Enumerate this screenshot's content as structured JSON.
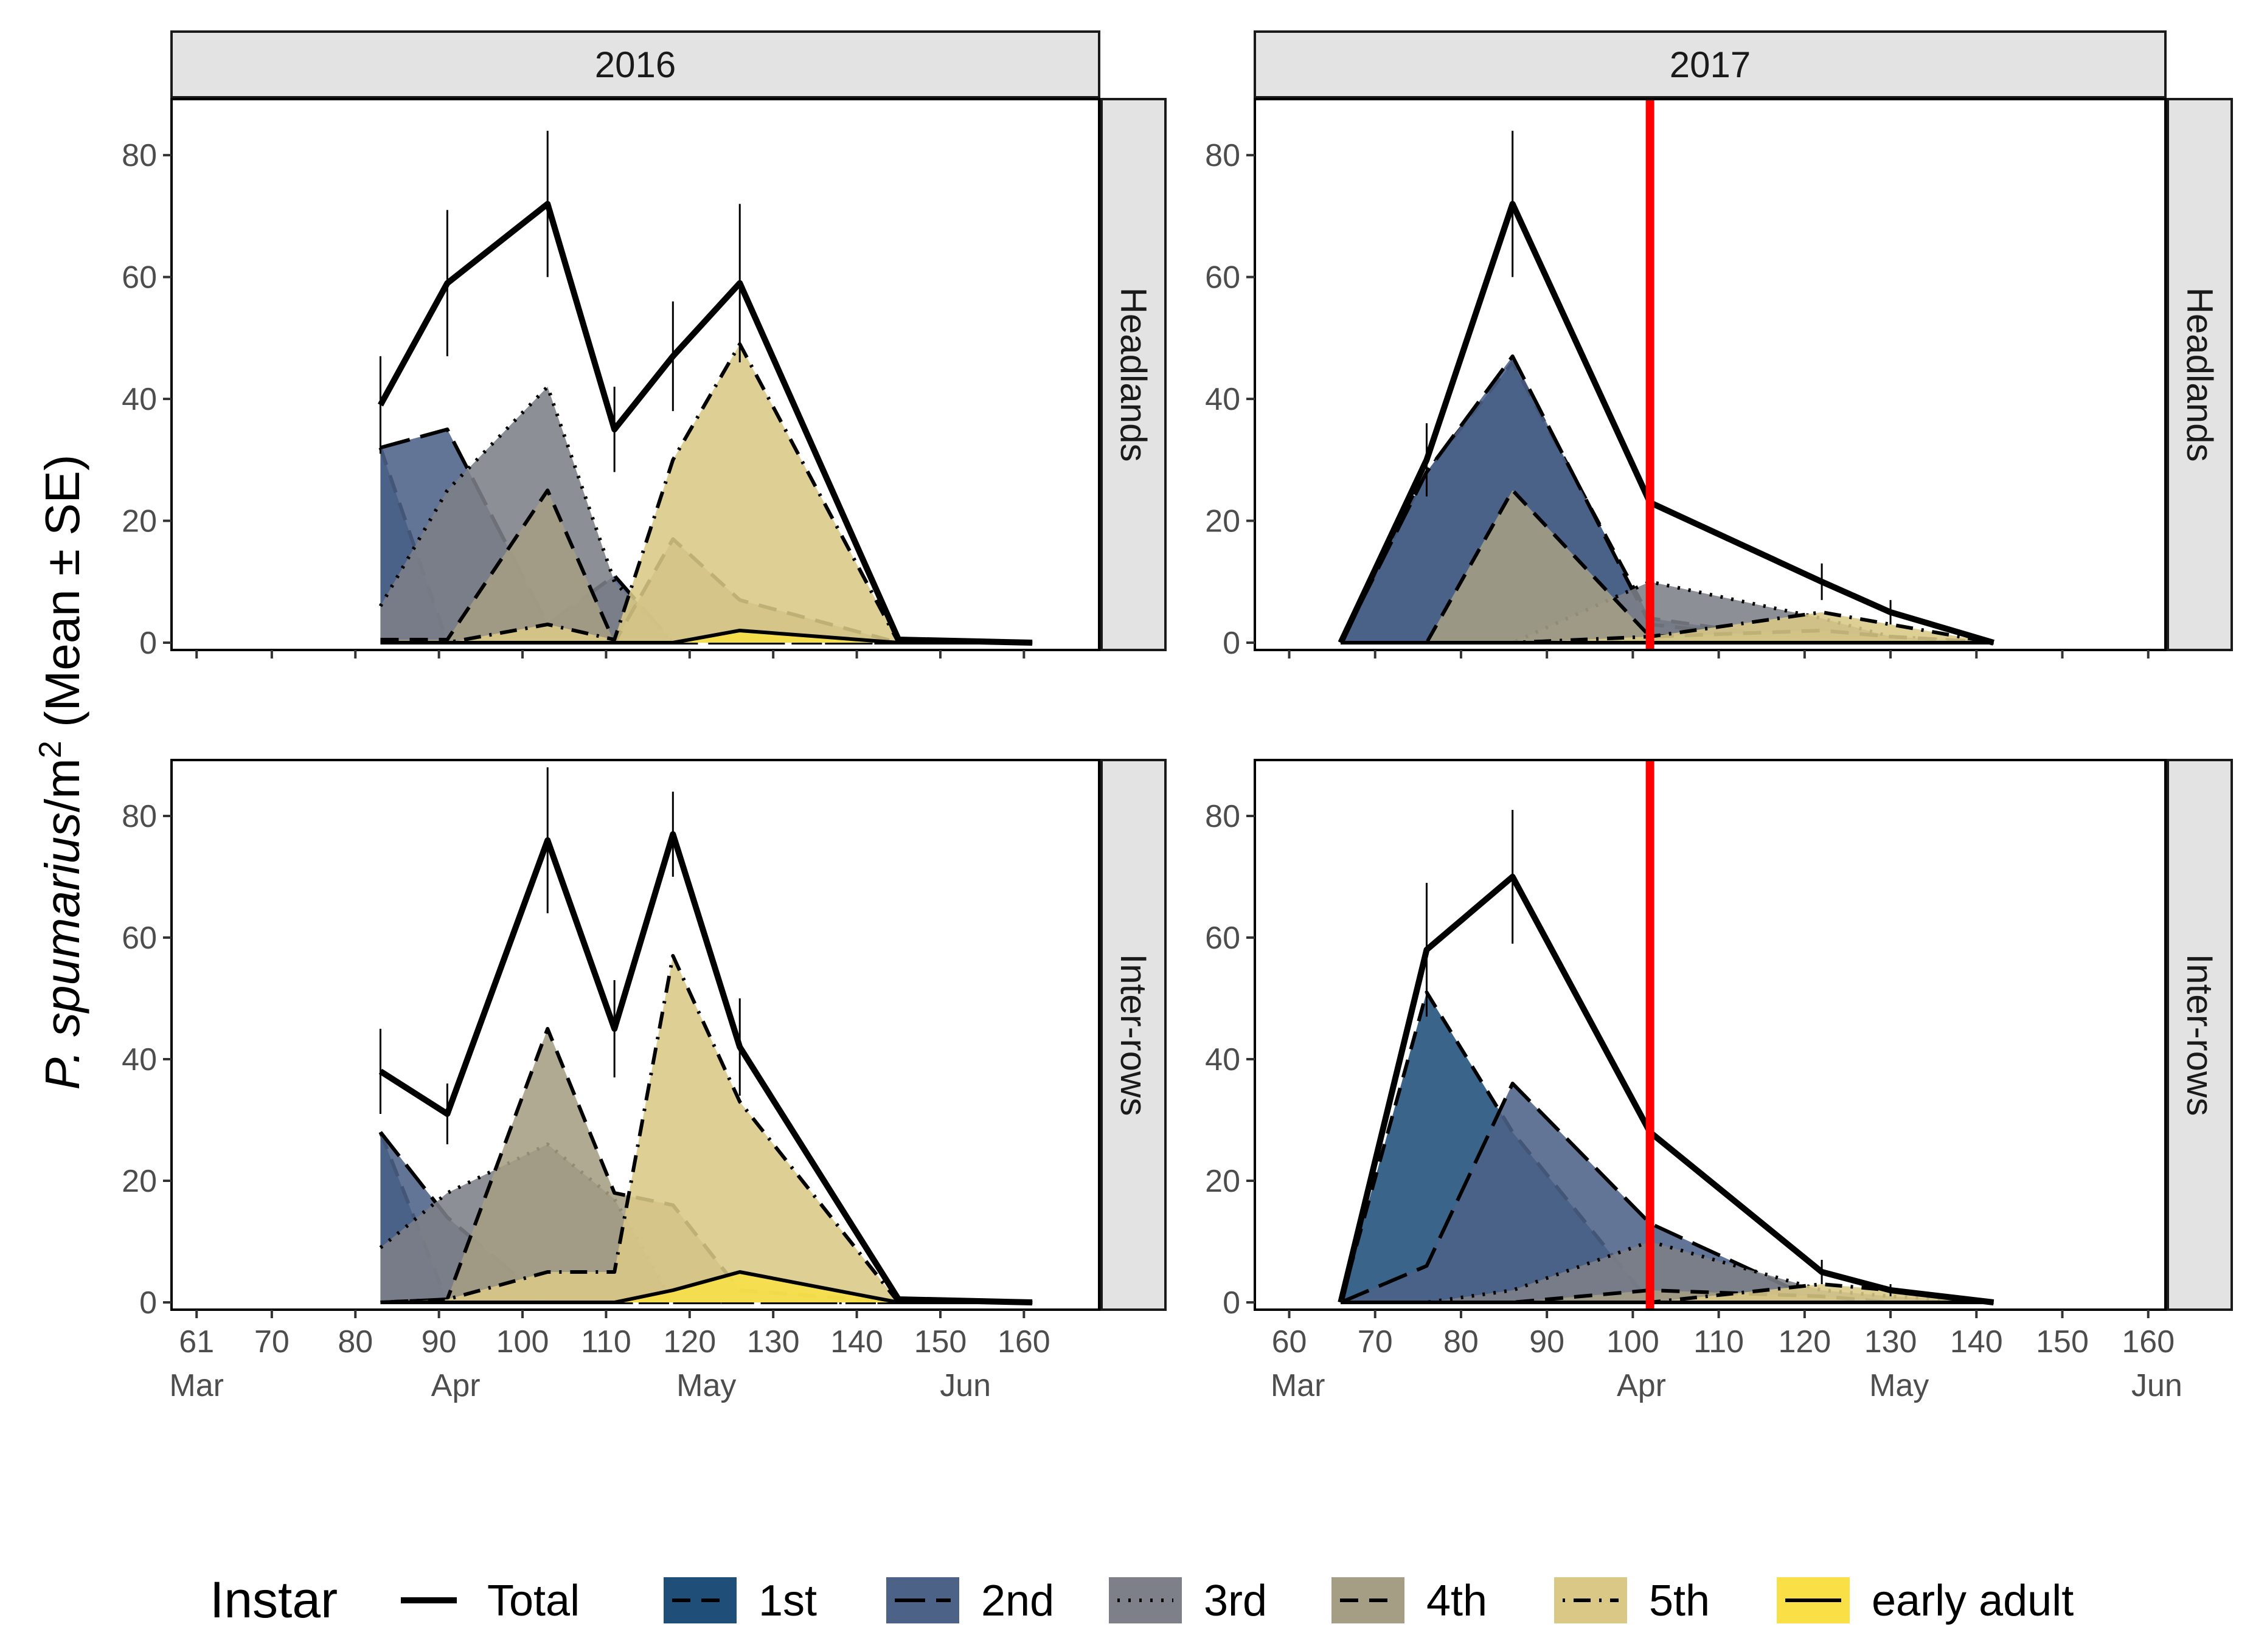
{
  "chart_data": {
    "type": "area",
    "ylabel": {
      "species": "P. spumarius",
      "unit": "/m",
      "superscript": "2",
      "stat": " (Mean ± SE)"
    },
    "ylim": [
      0,
      88
    ],
    "y_ticks": [
      "0",
      "20",
      "40",
      "60",
      "80"
    ],
    "legend": {
      "title": "Instar",
      "entries": [
        {
          "label": "Total",
          "key": "total",
          "fill": "none",
          "linetype": "solid"
        },
        {
          "label": "1st",
          "key": "i1",
          "fill": "#1F4E79",
          "linetype": "dashed"
        },
        {
          "label": "2nd",
          "key": "i2",
          "fill": "#4D6287",
          "linetype": "longdash"
        },
        {
          "label": "3rd",
          "key": "i3",
          "fill": "#7D8088",
          "linetype": "dotted"
        },
        {
          "label": "4th",
          "key": "i4",
          "fill": "#A59E84",
          "linetype": "dashed"
        },
        {
          "label": "5th",
          "key": "i5",
          "fill": "#D9C886",
          "linetype": "dotdash"
        },
        {
          "label": "early adult",
          "key": "ea",
          "fill": "#F8E046",
          "linetype": "solid"
        }
      ]
    },
    "colors": {
      "total": "#000000",
      "cutoff_line": "#FF0000",
      "strip_bg": "#E3E3E3",
      "axis_text": "#4D4D4D"
    },
    "columns": [
      {
        "year": "2016",
        "xlim": [
          58,
          169
        ],
        "x_ticks": [
          "61",
          "70",
          "80",
          "90",
          "100",
          "110",
          "120",
          "130",
          "140",
          "150",
          "160"
        ],
        "x_tick_values": [
          61,
          70,
          80,
          90,
          100,
          110,
          120,
          130,
          140,
          150,
          160
        ],
        "months": [
          {
            "label": "Mar",
            "day": 61
          },
          {
            "label": "Apr",
            "day": 92
          },
          {
            "label": "May",
            "day": 122
          },
          {
            "label": "Jun",
            "day": 153
          }
        ],
        "cutoff_day": null
      },
      {
        "year": "2017",
        "xlim": [
          56,
          162
        ],
        "x_ticks": [
          "60",
          "70",
          "80",
          "90",
          "100",
          "110",
          "120",
          "130",
          "140",
          "150",
          "160"
        ],
        "x_tick_values": [
          60,
          70,
          80,
          90,
          100,
          110,
          120,
          130,
          140,
          150,
          160
        ],
        "months": [
          {
            "label": "Mar",
            "day": 61
          },
          {
            "label": "Apr",
            "day": 101
          },
          {
            "label": "May",
            "day": 131
          },
          {
            "label": "Jun",
            "day": 161
          }
        ],
        "cutoff_day": 102
      }
    ],
    "rows": [
      "Headlands",
      "Inter-rows"
    ],
    "panels": [
      {
        "year": "2016",
        "row": "Headlands",
        "days": [
          83,
          91,
          103,
          111,
          118,
          126,
          145,
          161
        ],
        "total": [
          39,
          59,
          72,
          35,
          47,
          59,
          0.5,
          0
        ],
        "se": [
          8,
          12,
          12,
          7,
          9,
          13,
          0,
          0
        ],
        "series": {
          "i1": [
            32,
            0,
            0,
            0,
            0,
            0,
            0,
            0
          ],
          "i2": [
            32,
            35,
            3,
            11,
            0,
            0,
            0,
            0
          ],
          "i3": [
            6,
            25,
            42,
            10,
            0,
            1,
            0,
            0
          ],
          "i4": [
            0.5,
            0.5,
            25,
            0,
            17,
            7,
            0,
            0
          ],
          "i5": [
            0,
            0,
            3,
            0.5,
            30,
            49,
            0,
            0
          ],
          "ea": [
            0,
            0,
            0,
            0,
            0,
            2,
            0,
            0
          ]
        }
      },
      {
        "year": "2017",
        "row": "Headlands",
        "days": [
          66,
          76,
          86,
          102,
          122,
          130,
          142
        ],
        "total": [
          0,
          30,
          72,
          23,
          10,
          5,
          0
        ],
        "se": [
          0,
          6,
          12,
          0,
          3,
          2,
          0
        ],
        "series": {
          "i1": [
            0,
            28,
            46,
            4,
            0,
            0,
            0
          ],
          "i2": [
            0,
            28,
            47,
            3,
            0,
            0,
            0
          ],
          "i3": [
            0,
            0,
            0,
            10,
            4,
            1,
            0
          ],
          "i4": [
            0,
            0,
            25,
            1,
            2,
            1,
            0
          ],
          "i5": [
            0,
            0,
            0,
            1,
            5,
            3,
            0
          ],
          "ea": [
            0,
            0,
            0,
            0,
            0,
            0,
            0
          ]
        }
      },
      {
        "year": "2016",
        "row": "Inter-rows",
        "days": [
          83,
          91,
          103,
          111,
          118,
          126,
          145,
          161
        ],
        "total": [
          38,
          31,
          76,
          45,
          77,
          42,
          0.5,
          0
        ],
        "se": [
          7,
          5,
          12,
          8,
          7,
          8,
          0,
          0
        ],
        "series": {
          "i1": [
            28,
            0,
            0,
            0,
            0,
            0,
            0,
            0
          ],
          "i2": [
            28,
            14,
            0,
            0,
            0,
            0,
            0,
            0
          ],
          "i3": [
            9,
            18,
            26,
            17,
            0,
            0,
            0,
            0
          ],
          "i4": [
            0,
            0.5,
            45,
            18,
            16,
            2,
            0,
            0
          ],
          "i5": [
            0,
            0.5,
            5,
            5,
            57,
            33,
            0,
            0
          ],
          "ea": [
            0,
            0,
            0,
            0,
            2,
            5,
            0,
            0
          ]
        }
      },
      {
        "year": "2017",
        "row": "Inter-rows",
        "days": [
          66,
          76,
          86,
          102,
          122,
          130,
          142
        ],
        "total": [
          0,
          58,
          70,
          28,
          5,
          2,
          0
        ],
        "se": [
          0,
          11,
          11,
          0,
          2,
          1,
          0
        ],
        "series": {
          "i1": [
            0,
            51,
            28,
            0,
            0,
            0,
            0
          ],
          "i2": [
            0,
            6,
            36,
            13,
            0,
            0,
            0
          ],
          "i3": [
            0,
            0,
            2,
            10,
            2,
            1,
            0
          ],
          "i4": [
            0,
            0,
            0,
            2,
            1,
            0,
            0
          ],
          "i5": [
            0,
            0,
            0,
            0,
            3,
            2,
            0
          ],
          "ea": [
            0,
            0,
            0,
            0,
            0,
            0,
            0
          ]
        }
      }
    ]
  }
}
